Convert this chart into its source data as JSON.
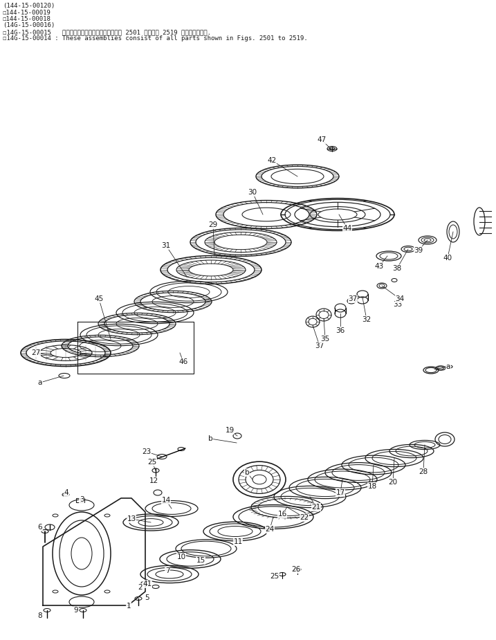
{
  "bg_color": "#ffffff",
  "line_color": "#1a1a1a",
  "fig_width": 7.17,
  "fig_height": 9.25,
  "dpi": 100,
  "header_lines": [
    "(144-15-00120)",
    "☐144-15-00019",
    "☐144-15-00018",
    "(14G-15-00016)",
    "☐14G-15-00015   これらのアセンブリの構成部品は第 2501 図から第 2519 図まで含みます.",
    "☐14G-15-00014 : These assemblies consist of all parts shown in Figs. 2501 to 2519."
  ]
}
